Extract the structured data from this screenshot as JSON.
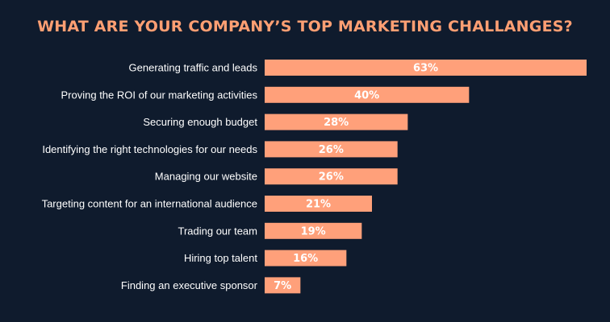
{
  "chart_data": {
    "type": "bar",
    "orientation": "horizontal",
    "title": "WHAT ARE YOUR COMPANY’S TOP MARKETING CHALLANGES?",
    "categories": [
      "Generating traffic and leads",
      "Proving the ROI of our marketing activities",
      "Securing enough budget",
      "Identifying the right technologies for our needs",
      "Managing our website",
      "Targeting content for an international audience",
      "Trading our team",
      "Hiring top talent",
      "Finding an executive sponsor"
    ],
    "values": [
      63,
      40,
      28,
      26,
      26,
      21,
      19,
      16,
      7
    ],
    "value_labels": [
      "63%",
      "40%",
      "28%",
      "26%",
      "26%",
      "21%",
      "19%",
      "16%",
      "7%"
    ],
    "xlim": [
      0,
      63
    ],
    "grid": false,
    "legend": "none",
    "colors": {
      "background": "#0f1b2d",
      "bar": "#ffa07a",
      "title": "#ff9f73",
      "text": "#ffffff"
    }
  }
}
